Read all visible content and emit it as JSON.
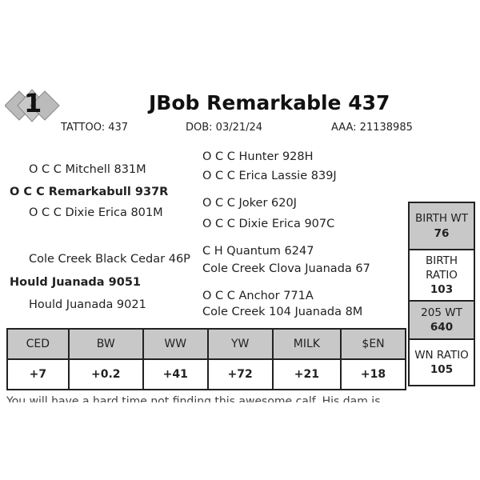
{
  "lot": {
    "number": "1",
    "name": "JBob Remarkable 437"
  },
  "meta": {
    "tattoo": "TATTOO:  437",
    "dob": "DOB: 03/21/24",
    "aaa": "AAA:  21138985"
  },
  "pedigree": {
    "sire": "O C C Remarkabull 937R",
    "sire_sire": "O C C Mitchell 831M",
    "sire_dam": "O C C Dixie Erica 801M",
    "sss": "O C C Hunter 928H",
    "ssd": "O C C Erica Lassie 839J",
    "sds": "O C C Joker 620J",
    "sdd": "O C C Dixie Erica 907C",
    "dam": "Hould Juanada 9051",
    "dam_sire": "Cole Creek Black Cedar 46P",
    "dam_dam": "Hould Juanada 9021",
    "dss": "C H Quantum 6247",
    "dsd": "Cole Creek Clova Juanada 67",
    "dds": "O C C Anchor 771A",
    "ddd": "Cole Creek 104 Juanada 8M"
  },
  "epd": {
    "headers": [
      "CED",
      "BW",
      "WW",
      "YW",
      "MILK",
      "$EN"
    ],
    "values": [
      "+7",
      "+0.2",
      "+41",
      "+72",
      "+21",
      "+18"
    ]
  },
  "performance": [
    {
      "label": "BIRTH WT",
      "value": "76"
    },
    {
      "label": "BIRTH RATIO",
      "value": "103"
    },
    {
      "label": "205 WT",
      "value": "640"
    },
    {
      "label": "WN RATIO",
      "value": "105"
    }
  ],
  "footnote": "You will have a hard time not finding this awesome calf. His dam is"
}
